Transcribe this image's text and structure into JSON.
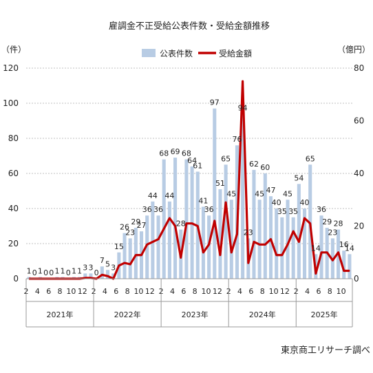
{
  "chart_data": {
    "type": "bar",
    "title": "雇調金不正受給公表件数・受給金額推移",
    "left_unit": "（件）",
    "right_unit": "（億円）",
    "source": "東京商工リサーチ調べ",
    "colors": {
      "bar": "#b8cce4",
      "line": "#c00000"
    },
    "left_axis": {
      "min": 0,
      "max": 120,
      "ticks": [
        "0",
        "20",
        "40",
        "60",
        "80",
        "100",
        "120"
      ]
    },
    "right_axis": {
      "min": 0,
      "max": 80,
      "ticks": [
        "0",
        "20",
        "40",
        "60",
        "80"
      ]
    },
    "x_tick_labels": [
      "2",
      "4",
      "6",
      "8",
      "10",
      "12",
      "2",
      "4",
      "6",
      "8",
      "10",
      "12",
      "2",
      "4",
      "6",
      "8",
      "10",
      "12",
      "2",
      "4",
      "6",
      "8",
      "10",
      "12",
      "2",
      "4",
      "6",
      "8",
      "10"
    ],
    "years": [
      {
        "label": "2021年",
        "start": 0,
        "end": 11
      },
      {
        "label": "2022年",
        "start": 12,
        "end": 23
      },
      {
        "label": "2023年",
        "start": 24,
        "end": 35
      },
      {
        "label": "2024年",
        "start": 36,
        "end": 47
      },
      {
        "label": "2025年",
        "start": 48,
        "end": 57
      }
    ],
    "series": [
      {
        "name": "公表件数",
        "axis": "left",
        "kind": "bar",
        "values": [
          1,
          0,
          1,
          0,
          0,
          1,
          1,
          0,
          1,
          1,
          3,
          3,
          0,
          7,
          5,
          3,
          15,
          26,
          23,
          29,
          27,
          36,
          44,
          36,
          68,
          44,
          69,
          28,
          68,
          64,
          61,
          41,
          36,
          97,
          51,
          65,
          45,
          76,
          94,
          23,
          62,
          45,
          60,
          47,
          40,
          35,
          45,
          35,
          54,
          40,
          65,
          14,
          36,
          29,
          23,
          28,
          16,
          14
        ],
        "labels": [
          "1",
          "0",
          "1",
          "0",
          "0",
          "1",
          "1",
          "0",
          "1",
          "1",
          "3",
          "3",
          "0",
          "7",
          "5",
          "3",
          "15",
          "26",
          "23",
          "29",
          "27",
          "36",
          "44",
          "36",
          "68",
          "44",
          "69",
          "28",
          "68",
          "64",
          "61",
          "41",
          "36",
          "97",
          "51",
          "65",
          "45",
          "76",
          "94",
          "23",
          "62",
          "45",
          "60",
          "47",
          "40",
          "35",
          "45",
          "35",
          "54",
          "40",
          "65",
          "14",
          "36",
          "29",
          "23",
          "28",
          "16",
          "14"
        ]
      },
      {
        "name": "受給金額",
        "axis": "right",
        "kind": "line",
        "values": [
          0,
          0,
          0,
          0,
          0,
          0,
          0,
          0,
          0,
          0,
          0.3,
          0.3,
          0,
          1.5,
          1,
          0,
          5,
          6,
          5.5,
          9,
          9,
          13,
          14,
          15,
          19,
          23,
          20,
          8,
          21,
          21,
          20,
          10,
          13,
          22,
          9,
          29,
          10,
          17,
          75,
          6,
          14,
          13,
          13,
          15,
          9,
          9,
          13,
          18,
          14,
          23,
          21,
          2,
          10,
          10,
          7,
          10,
          3,
          3
        ]
      }
    ]
  }
}
